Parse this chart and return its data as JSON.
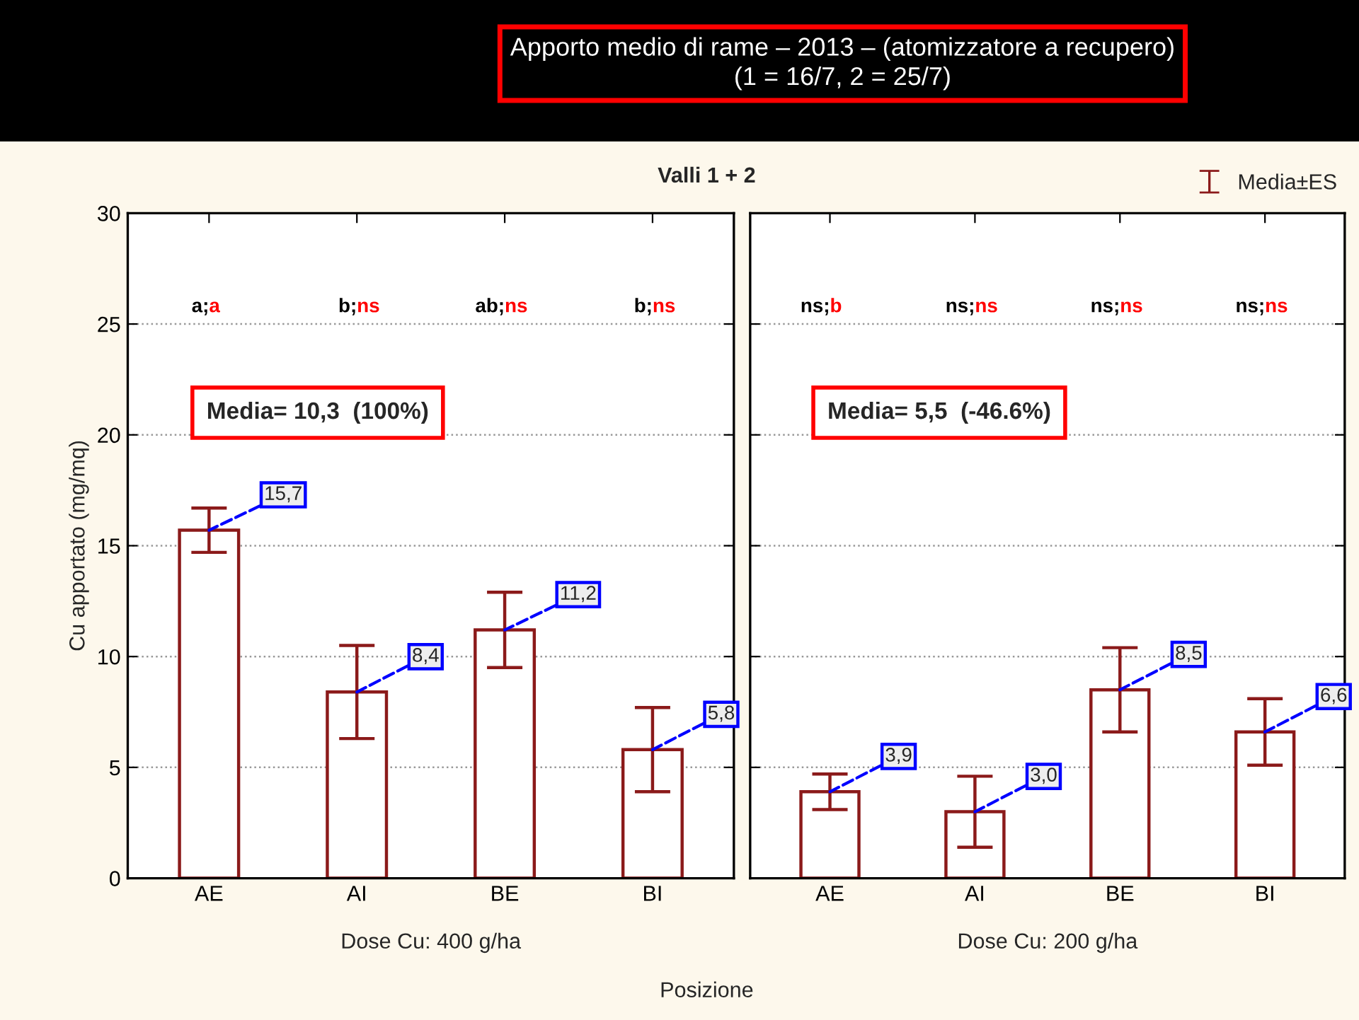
{
  "chart_data": [
    {
      "type": "bar",
      "title": "Apporto medio di rame – 2013 – (atomizzatore a recupero)\n(1 = 16/7, 2 = 25/7)",
      "subtitle": "Valli 1 + 2",
      "xlabel": "Dose Cu: 400 g/ha",
      "ylabel": "Cu apportato (mg/mq)",
      "categories": [
        "AE",
        "AI",
        "BE",
        "BI"
      ],
      "series": [
        {
          "color": "#8b1a1a",
          "values": [
            15.7,
            8.4,
            11.2,
            5.8
          ],
          "errors": [
            1.0,
            2.1,
            1.7,
            1.9
          ],
          "value_labels": [
            "15,7",
            "8,4",
            "11,2",
            "5,8"
          ]
        }
      ],
      "ylim": [
        0,
        30
      ],
      "yticks": [
        0,
        5,
        10,
        15,
        20,
        25,
        30
      ],
      "grid": "y",
      "annotations": [
        "a;a",
        "b;ns",
        "ab;ns",
        "b;ns",
        "Media= 10,3  (100%)",
        "Posizione"
      ]
    },
    {
      "type": "bar",
      "xlabel": "Dose Cu: 200 g/ha",
      "categories": [
        "AE",
        "AI",
        "BE",
        "BI"
      ],
      "series": [
        {
          "name": "Media±ES",
          "color": "#8b1a1a",
          "values": [
            3.9,
            3.0,
            8.5,
            6.6
          ],
          "errors": [
            0.8,
            1.6,
            1.9,
            1.5
          ],
          "value_labels": [
            "3,9",
            "3,0",
            "8,5",
            "6,6"
          ]
        }
      ],
      "ylim": [
        0,
        30
      ],
      "yticks": [
        0,
        5,
        10,
        15,
        20,
        25,
        30
      ],
      "grid": "y",
      "tick_labels": "x",
      "legend": "top right",
      "annotations": [
        "ns;b",
        "ns;ns",
        "ns;ns",
        "ns;ns",
        "Media= 5,5  (-46.6%)"
      ]
    }
  ]
}
